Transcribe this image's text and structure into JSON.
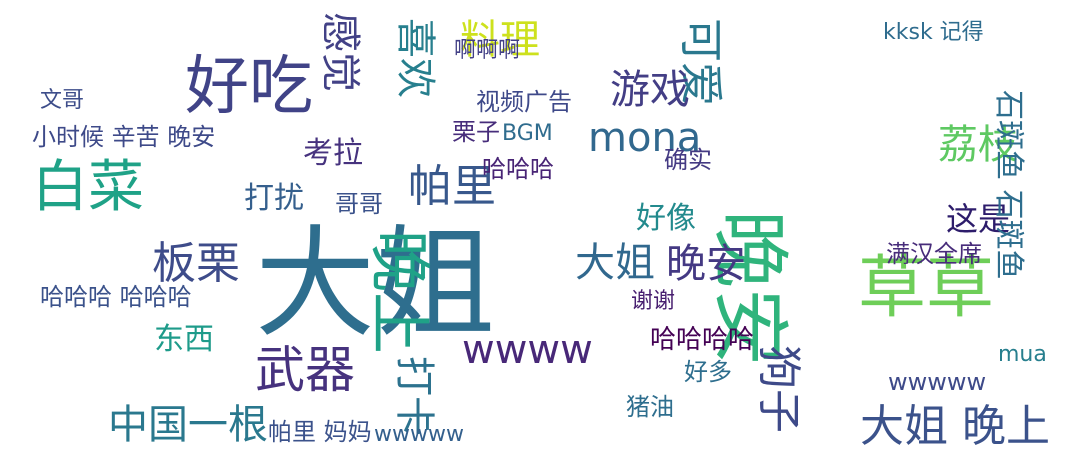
{
  "cloud": {
    "words": [
      {
        "text": "大姐",
        "color": "#2e6e8e",
        "size": "xxl"
      },
      {
        "text": "晚安",
        "color": "#2fb47c",
        "size": "xl",
        "rot": true
      },
      {
        "text": "草草",
        "color": "#6ece58",
        "size": "xl"
      },
      {
        "text": "白菜",
        "color": "#1fa287",
        "size": "xl"
      },
      {
        "text": "好吃",
        "color": "#404387",
        "size": "xl"
      },
      {
        "text": "武器",
        "color": "#46327e",
        "size": "xl"
      },
      {
        "text": "晚上",
        "color": "#1fa287",
        "size": "xl",
        "rot": true
      },
      {
        "text": "大姐 晚上",
        "color": "#3b528b",
        "size": "l"
      },
      {
        "text": "帕里",
        "color": "#38588c",
        "size": "l"
      },
      {
        "text": "板栗",
        "color": "#3e4c8a",
        "size": "l"
      },
      {
        "text": "mona",
        "color": "#31688e",
        "size": "l"
      },
      {
        "text": "大姐",
        "color": "#31688e",
        "size": "l"
      },
      {
        "text": "晚安",
        "color": "#443983",
        "size": "l"
      },
      {
        "text": "打卡",
        "color": "#2c728e",
        "size": "l",
        "rot": true
      },
      {
        "text": "wwww",
        "color": "#482878",
        "size": "l"
      },
      {
        "text": "可爱",
        "color": "#2a788e",
        "size": "l",
        "rot": true
      },
      {
        "text": "狗子",
        "color": "#3e4a89",
        "size": "l",
        "rot": true
      },
      {
        "text": "荔枝",
        "color": "#5ec962",
        "size": "l"
      },
      {
        "text": "料理",
        "color": "#cde11d",
        "size": "l"
      },
      {
        "text": "游戏",
        "color": "#433e85",
        "size": "l"
      },
      {
        "text": "喜欢",
        "color": "#277f8e",
        "size": "l",
        "rot": true
      },
      {
        "text": "感觉",
        "color": "#424186",
        "size": "l",
        "rot": true
      },
      {
        "text": "中国一根",
        "color": "#2a788e",
        "size": "l"
      },
      {
        "text": "这是",
        "color": "#2d1c6b",
        "size": "m"
      },
      {
        "text": "打扰",
        "color": "#355f8d",
        "size": "m"
      },
      {
        "text": "考拉",
        "color": "#46327e",
        "size": "m"
      },
      {
        "text": "东西",
        "color": "#1e9b8a",
        "size": "m"
      },
      {
        "text": "好像",
        "color": "#238a8d",
        "size": "m"
      },
      {
        "text": "石斑鱼 石斑鱼",
        "color": "#2e6e8e",
        "size": "m",
        "rot": true
      },
      {
        "text": "mua",
        "color": "#277f8e",
        "size": "m"
      },
      {
        "text": "哈哈哈哈",
        "color": "#440154",
        "size": "m"
      },
      {
        "text": "小时候 辛苦 晚安",
        "color": "#3e4a89",
        "size": "m"
      },
      {
        "text": "哈哈哈 哈哈哈",
        "color": "#3b528b",
        "size": "m"
      },
      {
        "text": "哈哈哈",
        "color": "#482475",
        "size": "m"
      },
      {
        "text": "视频广告",
        "color": "#3e4989",
        "size": "m"
      },
      {
        "text": "满汉全席",
        "color": "#472c7a",
        "size": "m"
      },
      {
        "text": "确实",
        "color": "#443a83",
        "size": "m"
      },
      {
        "text": "哥哥",
        "color": "#3b528b",
        "size": "m"
      },
      {
        "text": "栗子",
        "color": "#472d7b",
        "size": "m"
      },
      {
        "text": "wwwww",
        "color": "#3e4a89",
        "size": "m"
      },
      {
        "text": "帕里 妈妈",
        "color": "#3b528b",
        "size": "m"
      },
      {
        "text": "猪油",
        "color": "#2e6e8e",
        "size": "m"
      },
      {
        "text": "好多",
        "color": "#2e6e8e",
        "size": "m"
      },
      {
        "text": "BGM",
        "color": "#2f6c8e",
        "size": "m"
      },
      {
        "text": "kksk 记得",
        "color": "#2f6c8e",
        "size": "m"
      },
      {
        "text": "谢谢",
        "color": "#481f70",
        "size": "m"
      },
      {
        "text": "wwwww",
        "color": "#34608d",
        "size": "m"
      },
      {
        "text": "啊啊啊",
        "color": "#424086",
        "size": "m"
      },
      {
        "text": "文哥",
        "color": "#3d4d8a",
        "size": "m"
      }
    ]
  }
}
